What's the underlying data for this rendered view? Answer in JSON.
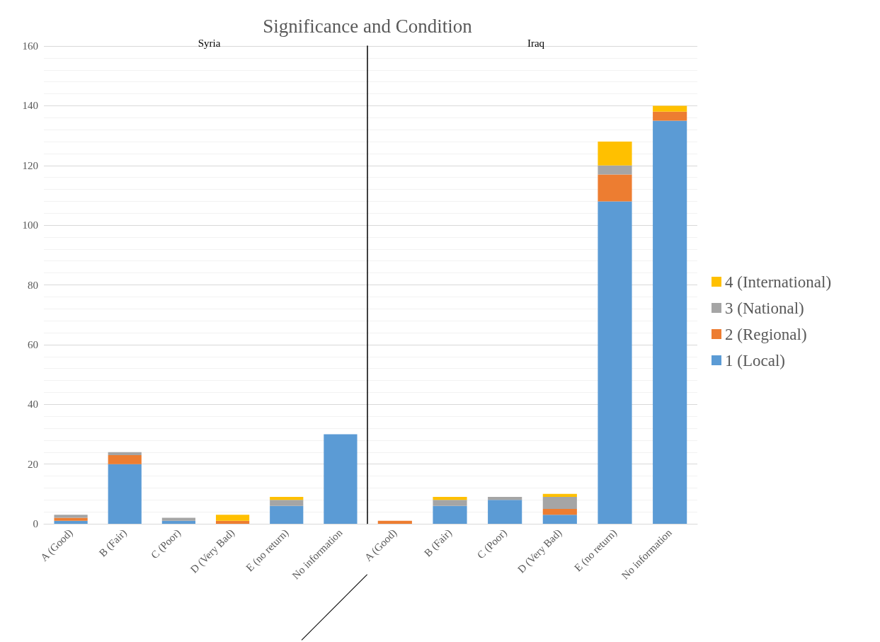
{
  "chart_data": [
    {
      "type": "bar",
      "title": "Significance and Condition",
      "subtitle": "Syria",
      "stacked": true,
      "categories": [
        "A (Good)",
        "B (Fair)",
        "C (Poor)",
        "D (Very Bad)",
        "E (no return)",
        "No information"
      ],
      "series": [
        {
          "color": "#5b9bd5",
          "values": [
            1,
            20,
            1,
            0,
            6,
            30
          ]
        },
        {
          "color": "#ed7d31",
          "values": [
            1,
            3,
            0,
            1,
            0,
            0
          ]
        },
        {
          "color": "#a5a5a5",
          "values": [
            1,
            1,
            1,
            0,
            2,
            0
          ]
        },
        {
          "color": "#ffc000",
          "values": [
            0,
            0,
            0,
            2,
            1,
            0
          ]
        }
      ],
      "ylim": [
        0,
        160
      ],
      "yticks": [
        0,
        20,
        40,
        60,
        80,
        100,
        120,
        140,
        160
      ],
      "grid": "y",
      "legend": false
    },
    {
      "type": "bar",
      "subtitle": "Iraq",
      "stacked": true,
      "categories": [
        "A (Good)",
        "B (Fair)",
        "C (Poor)",
        "D (Very Bad)",
        "E (no return)",
        "No information"
      ],
      "series": [
        {
          "name": "1 (Local)",
          "color": "#5b9bd5",
          "values": [
            0,
            6,
            8,
            3,
            108,
            135
          ]
        },
        {
          "name": "2 (Regional)",
          "color": "#ed7d31",
          "values": [
            1,
            0,
            0,
            2,
            9,
            3
          ]
        },
        {
          "name": "3 (National)",
          "color": "#a5a5a5",
          "values": [
            0,
            2,
            1,
            4,
            3,
            0
          ]
        },
        {
          "name": "4 (International)",
          "color": "#ffc000",
          "values": [
            0,
            1,
            0,
            1,
            8,
            2
          ]
        }
      ],
      "ylim": [
        0,
        160
      ],
      "yticks": [
        0,
        20,
        40,
        60,
        80,
        100,
        120,
        140,
        160
      ],
      "grid": "y",
      "legend": "right",
      "tick_labels": "x"
    }
  ]
}
